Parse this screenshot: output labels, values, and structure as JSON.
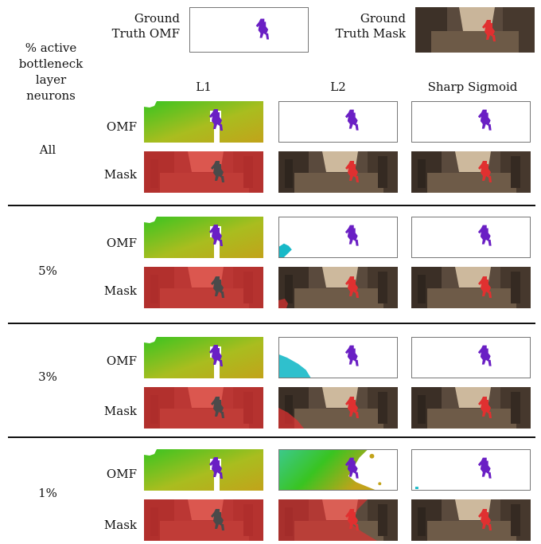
{
  "figure": {
    "row_header": "% active bottleneck layer neurons",
    "gt": {
      "omf_label": "Ground Truth OMF",
      "mask_label": "Ground Truth Mask"
    },
    "columns": [
      "L1",
      "L2",
      "Sharp Sigmoid"
    ],
    "row_type_labels": {
      "omf": "OMF",
      "mask": "Mask"
    },
    "groups": [
      {
        "label": "All"
      },
      {
        "label": "5%"
      },
      {
        "label": "3%"
      },
      {
        "label": "1%"
      }
    ]
  },
  "colors": {
    "figure_purple": "#6a1fc4",
    "mask_red": "#e03030",
    "flow_green": "#39c421",
    "flow_olive": "#c2a31a",
    "flow_cyan": "#18b9c8"
  }
}
